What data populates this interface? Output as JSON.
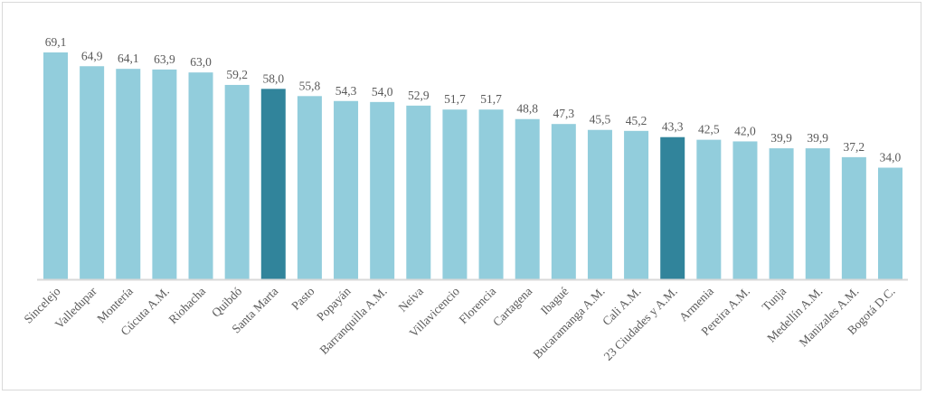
{
  "chart_data": {
    "type": "bar",
    "title": "",
    "xlabel": "",
    "ylabel": "",
    "ylim": [
      0,
      70
    ],
    "grid": false,
    "categories": [
      "Sincelejo",
      "Valledupar",
      "Montería",
      "Cúcuta A.M.",
      "Riohacha",
      "Quibdó",
      "Santa Marta",
      "Pasto",
      "Popayán",
      "Barranquilla A.M.",
      "Neiva",
      "Villavicencio",
      "Florencia",
      "Cartagena",
      "Ibagué",
      "Bucaramanga A.M.",
      "Cali A.M.",
      "23 Ciudades y A.M.",
      "Armenia",
      "Pereira A.M.",
      "Tunja",
      "Medellín A.M.",
      "Manizales A.M.",
      "Bogotá D.C."
    ],
    "values": [
      69.1,
      64.9,
      64.1,
      63.9,
      63.0,
      59.2,
      58.0,
      55.8,
      54.3,
      54.0,
      52.9,
      51.7,
      51.7,
      48.8,
      47.3,
      45.5,
      45.2,
      43.3,
      42.5,
      42.0,
      39.9,
      39.9,
      37.2,
      34.0
    ],
    "data_labels": [
      "69,1",
      "64,9",
      "64,1",
      "63,9",
      "63,0",
      "59,2",
      "58,0",
      "55,8",
      "54,3",
      "54,0",
      "52,9",
      "51,7",
      "51,7",
      "48,8",
      "47,3",
      "45,5",
      "45,2",
      "43,3",
      "42,5",
      "42,0",
      "39,9",
      "39,9",
      "37,2",
      "34,0"
    ],
    "highlighted": [
      "Santa Marta",
      "23 Ciudades y A.M."
    ],
    "colors": {
      "default": "#92CDDC",
      "highlight": "#31849B",
      "axis": "#d9d9d9"
    }
  }
}
